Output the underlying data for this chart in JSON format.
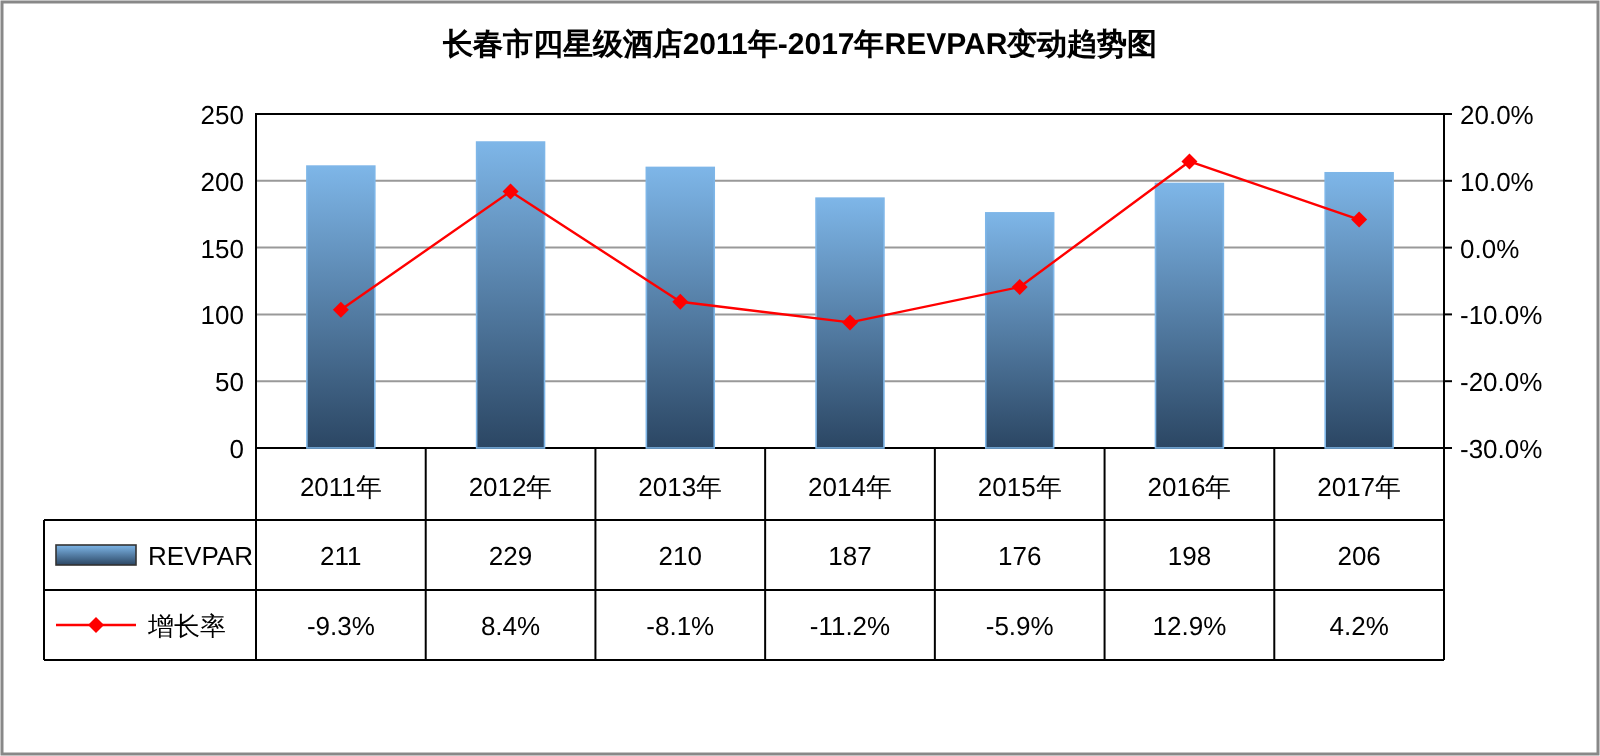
{
  "chart_data": {
    "type": "bar",
    "title": "长春市四星级酒店2011年-2017年REVPAR变动趋势图",
    "categories": [
      "2011年",
      "2012年",
      "2013年",
      "2014年",
      "2015年",
      "2016年",
      "2017年"
    ],
    "series": [
      {
        "name": "REVPAR",
        "color": "#7eb6e8",
        "values": [
          211,
          229,
          210,
          187,
          176,
          198,
          206
        ],
        "value_labels": [
          "211",
          "229",
          "210",
          "187",
          "176",
          "198",
          "206"
        ]
      },
      {
        "name": "增长率",
        "type": "line",
        "axis": "y2",
        "color": "#ff0000",
        "values": [
          -9.3,
          8.4,
          -8.1,
          -11.2,
          -5.9,
          12.9,
          4.2
        ],
        "value_labels": [
          "-9.3%",
          "8.4%",
          "-8.1%",
          "-11.2%",
          "-5.9%",
          "12.9%",
          "4.2%"
        ]
      }
    ],
    "ylim": [
      0,
      250
    ],
    "yticks": [
      0,
      50,
      100,
      150,
      200,
      250
    ],
    "y2lim": [
      -30,
      20
    ],
    "y2ticks": [
      {
        "value": -30,
        "label": "-30.0%"
      },
      {
        "value": -20,
        "label": "-20.0%"
      },
      {
        "value": -10,
        "label": "-10.0%"
      },
      {
        "value": 0,
        "label": "0.0%"
      },
      {
        "value": 10,
        "label": "10.0%"
      },
      {
        "value": 20,
        "label": "20.0%"
      }
    ],
    "grid": "y",
    "legend": "bottom",
    "marker": "diamond"
  }
}
